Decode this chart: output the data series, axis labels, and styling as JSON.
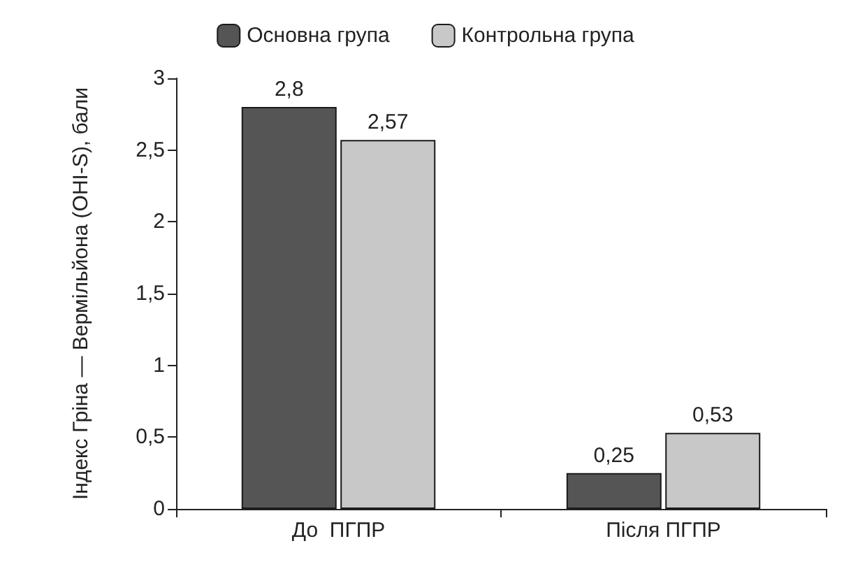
{
  "chart_data": {
    "type": "bar",
    "ylabel": "Індекс Гріна — Вермільйона (OHI-S), бали",
    "categories": [
      "До  ПГПР",
      "Після ПГПР"
    ],
    "series": [
      {
        "name": "Основна група",
        "color": "#555555",
        "values": [
          2.8,
          0.25
        ],
        "value_labels": [
          "2,8",
          "0,25"
        ]
      },
      {
        "name": "Контрольна група",
        "color": "#c8c8c8",
        "values": [
          2.57,
          0.53
        ],
        "value_labels": [
          "2,57",
          "0,53"
        ]
      }
    ],
    "ylim": [
      0,
      3
    ],
    "yticks": [
      0,
      {
        "value": 0.5,
        "label": "0,5"
      },
      1,
      {
        "value": 1.5,
        "label": "1,5"
      },
      2,
      {
        "value": 2.5,
        "label": "2,5"
      },
      3
    ],
    "grid": false,
    "legend": "top"
  }
}
